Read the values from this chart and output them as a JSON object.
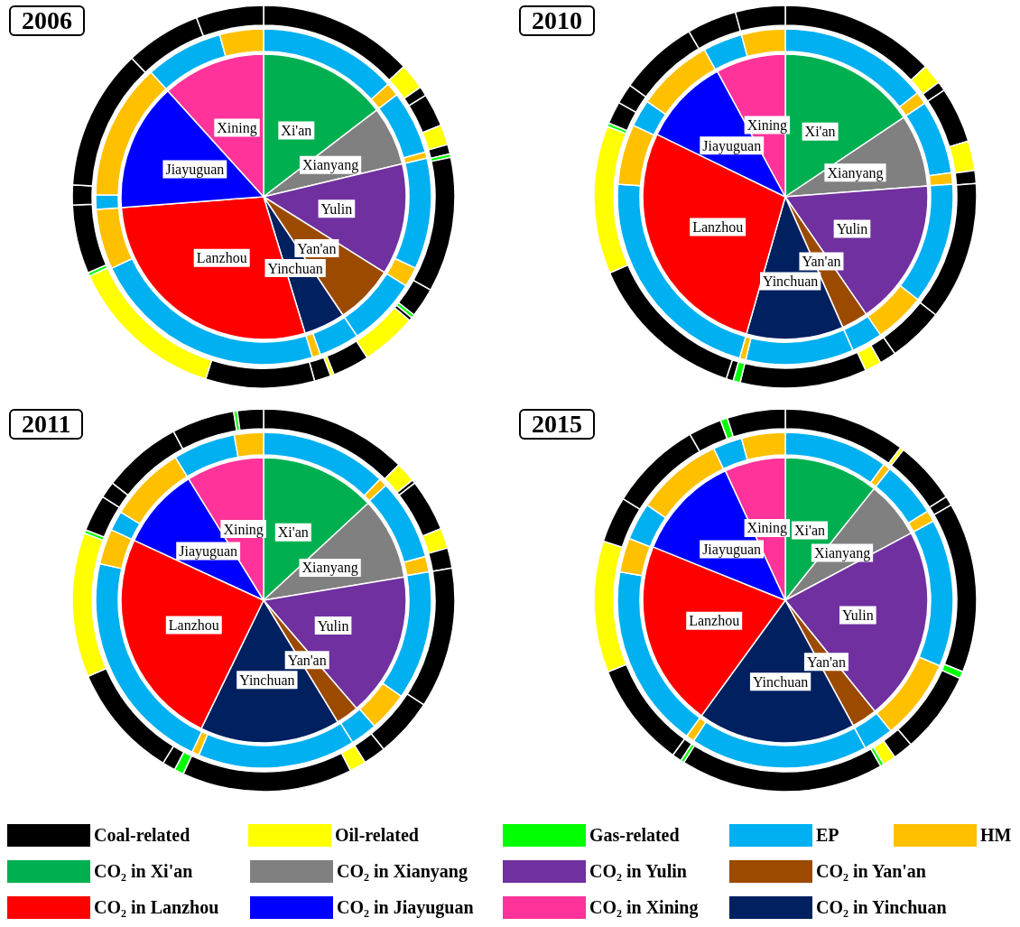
{
  "chart_data": [
    {
      "type": "pie",
      "title": "2006",
      "categories": [
        "Xi'an",
        "Xianyang",
        "Yulin",
        "Yan'an",
        "Yinchuan",
        "Lanzhou",
        "Jiayuguan",
        "Xining"
      ],
      "values": [
        14.6,
        6.7,
        12.6,
        6.7,
        4.7,
        28.5,
        14.5,
        11.7
      ],
      "colors": [
        "#00b050",
        "#808080",
        "#7030a0",
        "#9c4a00",
        "#002060",
        "#ff0000",
        "#0000ff",
        "#ff3399"
      ]
    },
    {
      "type": "donut",
      "categories": [
        null,
        null,
        null,
        null,
        null,
        null,
        null,
        null,
        null,
        null,
        null,
        null,
        null,
        null,
        null
      ],
      "values": [
        13.3,
        1.3,
        6.1,
        0.6,
        10.7,
        1.9,
        6.7,
        3.9,
        0.8,
        22.7,
        5.8,
        1.4,
        13.1,
        7.5,
        4.2
      ],
      "colors": [
        "#00b0f0",
        "#ffc000",
        "#00b0f0",
        "#ffc000",
        "#00b0f0",
        "#ffc000",
        "#00b0f0",
        "#00b0f0",
        "#ffc000",
        "#00b0f0",
        "#ffc000",
        "#00b0f0",
        "#ffc000",
        "#00b0f0",
        "#ffc000"
      ]
    },
    {
      "type": "donut",
      "categories": [
        null,
        null,
        null,
        null,
        null,
        null,
        null,
        null,
        null,
        null,
        null,
        null,
        null,
        null,
        null,
        null,
        null,
        null,
        null,
        null,
        null,
        null,
        null
      ],
      "values": [
        13.1,
        2.2,
        0.8,
        2.8,
        1.7,
        0.8,
        0.3,
        11.4,
        2.5,
        0.3,
        0.3,
        4.7,
        3.1,
        0.3,
        1.4,
        9.2,
        13.3,
        0.3,
        5.8,
        1.7,
        11.9,
        6.4,
        5.7
      ],
      "colors": [
        "#000000",
        "#ffff00",
        "#000000",
        "#000000",
        "#ffff00",
        "#000000",
        "#00ff00",
        "#000000",
        "#000000",
        "#00ff00",
        "#000000",
        "#ffff00",
        "#000000",
        "#ffff00",
        "#000000",
        "#000000",
        "#ffff00",
        "#00ff00",
        "#000000",
        "#000000",
        "#000000",
        "#000000",
        "#000000"
      ]
    },
    {
      "type": "pie",
      "title": "2010",
      "categories": [
        "Xi'an",
        "Xianyang",
        "Yulin",
        "Yan'an",
        "Yinchuan",
        "Lanzhou",
        "Jiayuguan",
        "Xining"
      ],
      "values": [
        15.6,
        8.2,
        16.6,
        3.0,
        11.0,
        27.8,
        9.9,
        7.9
      ],
      "colors": [
        "#00b050",
        "#808080",
        "#7030a0",
        "#9c4a00",
        "#002060",
        "#ff0000",
        "#0000ff",
        "#ff3399"
      ]
    },
    {
      "type": "donut",
      "categories": [
        null,
        null,
        null,
        null,
        null,
        null,
        null,
        null,
        null,
        null,
        null,
        null,
        null,
        null,
        null
      ],
      "values": [
        14.4,
        1.2,
        7.1,
        1.1,
        11.7,
        4.9,
        3.0,
        10.4,
        0.6,
        21.8,
        5.8,
        2.6,
        7.4,
        3.8,
        4.2
      ],
      "colors": [
        "#00b0f0",
        "#ffc000",
        "#00b0f0",
        "#ffc000",
        "#00b0f0",
        "#ffc000",
        "#00b0f0",
        "#00b0f0",
        "#ffc000",
        "#00b0f0",
        "#ffc000",
        "#00b0f0",
        "#ffc000",
        "#00b0f0",
        "#ffc000"
      ]
    },
    {
      "type": "donut",
      "categories": [
        null,
        null,
        null,
        null,
        null,
        null,
        null,
        null,
        null,
        null,
        null,
        null,
        null,
        null,
        null,
        null,
        null,
        null,
        null,
        null,
        null
      ],
      "values": [
        13.1,
        1.7,
        0.8,
        4.7,
        2.5,
        1.1,
        11.7,
        4.7,
        1.4,
        1.4,
        10.7,
        0.6,
        0.6,
        13.5,
        12.5,
        0.3,
        1.9,
        1.7,
        6.7,
        4.2,
        4.2
      ],
      "colors": [
        "#000000",
        "#ffff00",
        "#000000",
        "#000000",
        "#ffff00",
        "#000000",
        "#000000",
        "#000000",
        "#000000",
        "#ffff00",
        "#000000",
        "#00ff00",
        "#000000",
        "#000000",
        "#ffff00",
        "#00ff00",
        "#000000",
        "#000000",
        "#000000",
        "#000000",
        "#000000"
      ]
    },
    {
      "type": "pie",
      "title": "2011",
      "categories": [
        "Xi'an",
        "Xianyang",
        "Yulin",
        "Yan'an",
        "Yinchuan",
        "Lanzhou",
        "Jiayuguan",
        "Xining"
      ],
      "values": [
        13.1,
        9.3,
        16.3,
        2.6,
        15.9,
        24.7,
        9.3,
        8.8
      ],
      "colors": [
        "#00b050",
        "#808080",
        "#7030a0",
        "#9c4a00",
        "#002060",
        "#ff0000",
        "#0000ff",
        "#ff3399"
      ]
    },
    {
      "type": "donut",
      "categories": [
        null,
        null,
        null,
        null,
        null,
        null,
        null,
        null,
        null,
        null,
        null,
        null,
        null,
        null,
        null
      ],
      "values": [
        12.2,
        0.8,
        7.8,
        1.5,
        12.4,
        3.8,
        2.6,
        15.2,
        0.7,
        21.5,
        3.4,
        1.9,
        7.4,
        6.0,
        2.8
      ],
      "colors": [
        "#00b0f0",
        "#ffc000",
        "#00b0f0",
        "#ffc000",
        "#00b0f0",
        "#ffc000",
        "#00b0f0",
        "#00b0f0",
        "#ffc000",
        "#00b0f0",
        "#ffc000",
        "#00b0f0",
        "#ffc000",
        "#00b0f0",
        "#ffc000"
      ]
    },
    {
      "type": "donut",
      "categories": [
        null,
        null,
        null,
        null,
        null,
        null,
        null,
        null,
        null,
        null,
        null,
        null,
        null,
        null,
        null,
        null,
        null,
        null,
        null,
        null,
        null,
        null
      ],
      "values": [
        12.5,
        1.7,
        0.3,
        4.4,
        1.7,
        1.7,
        11.9,
        5.0,
        1.9,
        1.4,
        14.4,
        0.8,
        1.1,
        9.7,
        12.2,
        0.3,
        3.1,
        1.4,
        6.7,
        5.3,
        0.3,
        2.2
      ],
      "colors": [
        "#000000",
        "#ffff00",
        "#000000",
        "#000000",
        "#ffff00",
        "#000000",
        "#000000",
        "#000000",
        "#000000",
        "#ffff00",
        "#000000",
        "#00ff00",
        "#000000",
        "#000000",
        "#ffff00",
        "#00ff00",
        "#000000",
        "#000000",
        "#000000",
        "#000000",
        "#00ff00",
        "#000000"
      ]
    },
    {
      "type": "pie",
      "title": "2015",
      "categories": [
        "Xi'an",
        "Xianyang",
        "Yulin",
        "Yan'an",
        "Yinchuan",
        "Lanzhou",
        "Jiayuguan",
        "Xining"
      ],
      "values": [
        10.7,
        6.5,
        22.0,
        2.9,
        17.9,
        21.1,
        12.0,
        6.9
      ],
      "colors": [
        "#00b050",
        "#808080",
        "#7030a0",
        "#9c4a00",
        "#002060",
        "#ff0000",
        "#0000ff",
        "#ff3399"
      ]
    },
    {
      "type": "donut",
      "categories": [
        null,
        null,
        null,
        null,
        null,
        null,
        null,
        null,
        null,
        null,
        null,
        null,
        null,
        null,
        null
      ],
      "values": [
        10.0,
        0.7,
        5.4,
        1.1,
        14.2,
        7.8,
        2.9,
        17.1,
        0.8,
        17.7,
        3.3,
        3.6,
        8.4,
        2.8,
        4.2
      ],
      "colors": [
        "#00b0f0",
        "#ffc000",
        "#00b0f0",
        "#ffc000",
        "#00b0f0",
        "#ffc000",
        "#00b0f0",
        "#00b0f0",
        "#ffc000",
        "#00b0f0",
        "#ffc000",
        "#00b0f0",
        "#ffc000",
        "#00b0f0",
        "#ffc000"
      ]
    },
    {
      "type": "donut",
      "categories": [
        null,
        null,
        null,
        null,
        null,
        null,
        null,
        null,
        null,
        null,
        null,
        null,
        null,
        null,
        null,
        null,
        null,
        null,
        null,
        null
      ],
      "values": [
        10.3,
        0.3,
        5.3,
        0.8,
        14.4,
        0.6,
        6.9,
        1.7,
        1.1,
        0.3,
        17.2,
        0.3,
        0.8,
        8.9,
        11.1,
        3.9,
        7.8,
        2.8,
        0.6,
        4.9
      ],
      "colors": [
        "#000000",
        "#ffff00",
        "#000000",
        "#000000",
        "#000000",
        "#00ff00",
        "#000000",
        "#000000",
        "#ffff00",
        "#00ff00",
        "#000000",
        "#00ff00",
        "#000000",
        "#000000",
        "#ffff00",
        "#000000",
        "#000000",
        "#000000",
        "#00ff00",
        "#000000"
      ]
    },
    {
      "type": "other",
      "categories": [
        "Coal-related",
        "Oil-related",
        "Gas-related",
        "EP",
        "HM",
        "CO₂ in Xi'an",
        "CO₂ in Xianyang",
        "CO₂ in Yulin",
        "CO₂ in Yan'an",
        "CO₂ in Lanzhou",
        "CO₂ in Jiayuguan",
        "CO₂ in Xining",
        "CO₂ in Yinchuan"
      ],
      "colors": [
        "#000000",
        "#ffff00",
        "#00ff00",
        "#00b0f0",
        "#ffc000",
        "#00b050",
        "#808080",
        "#7030a0",
        "#9c4a00",
        "#ff0000",
        "#0000ff",
        "#ff3399",
        "#002060"
      ]
    }
  ]
}
